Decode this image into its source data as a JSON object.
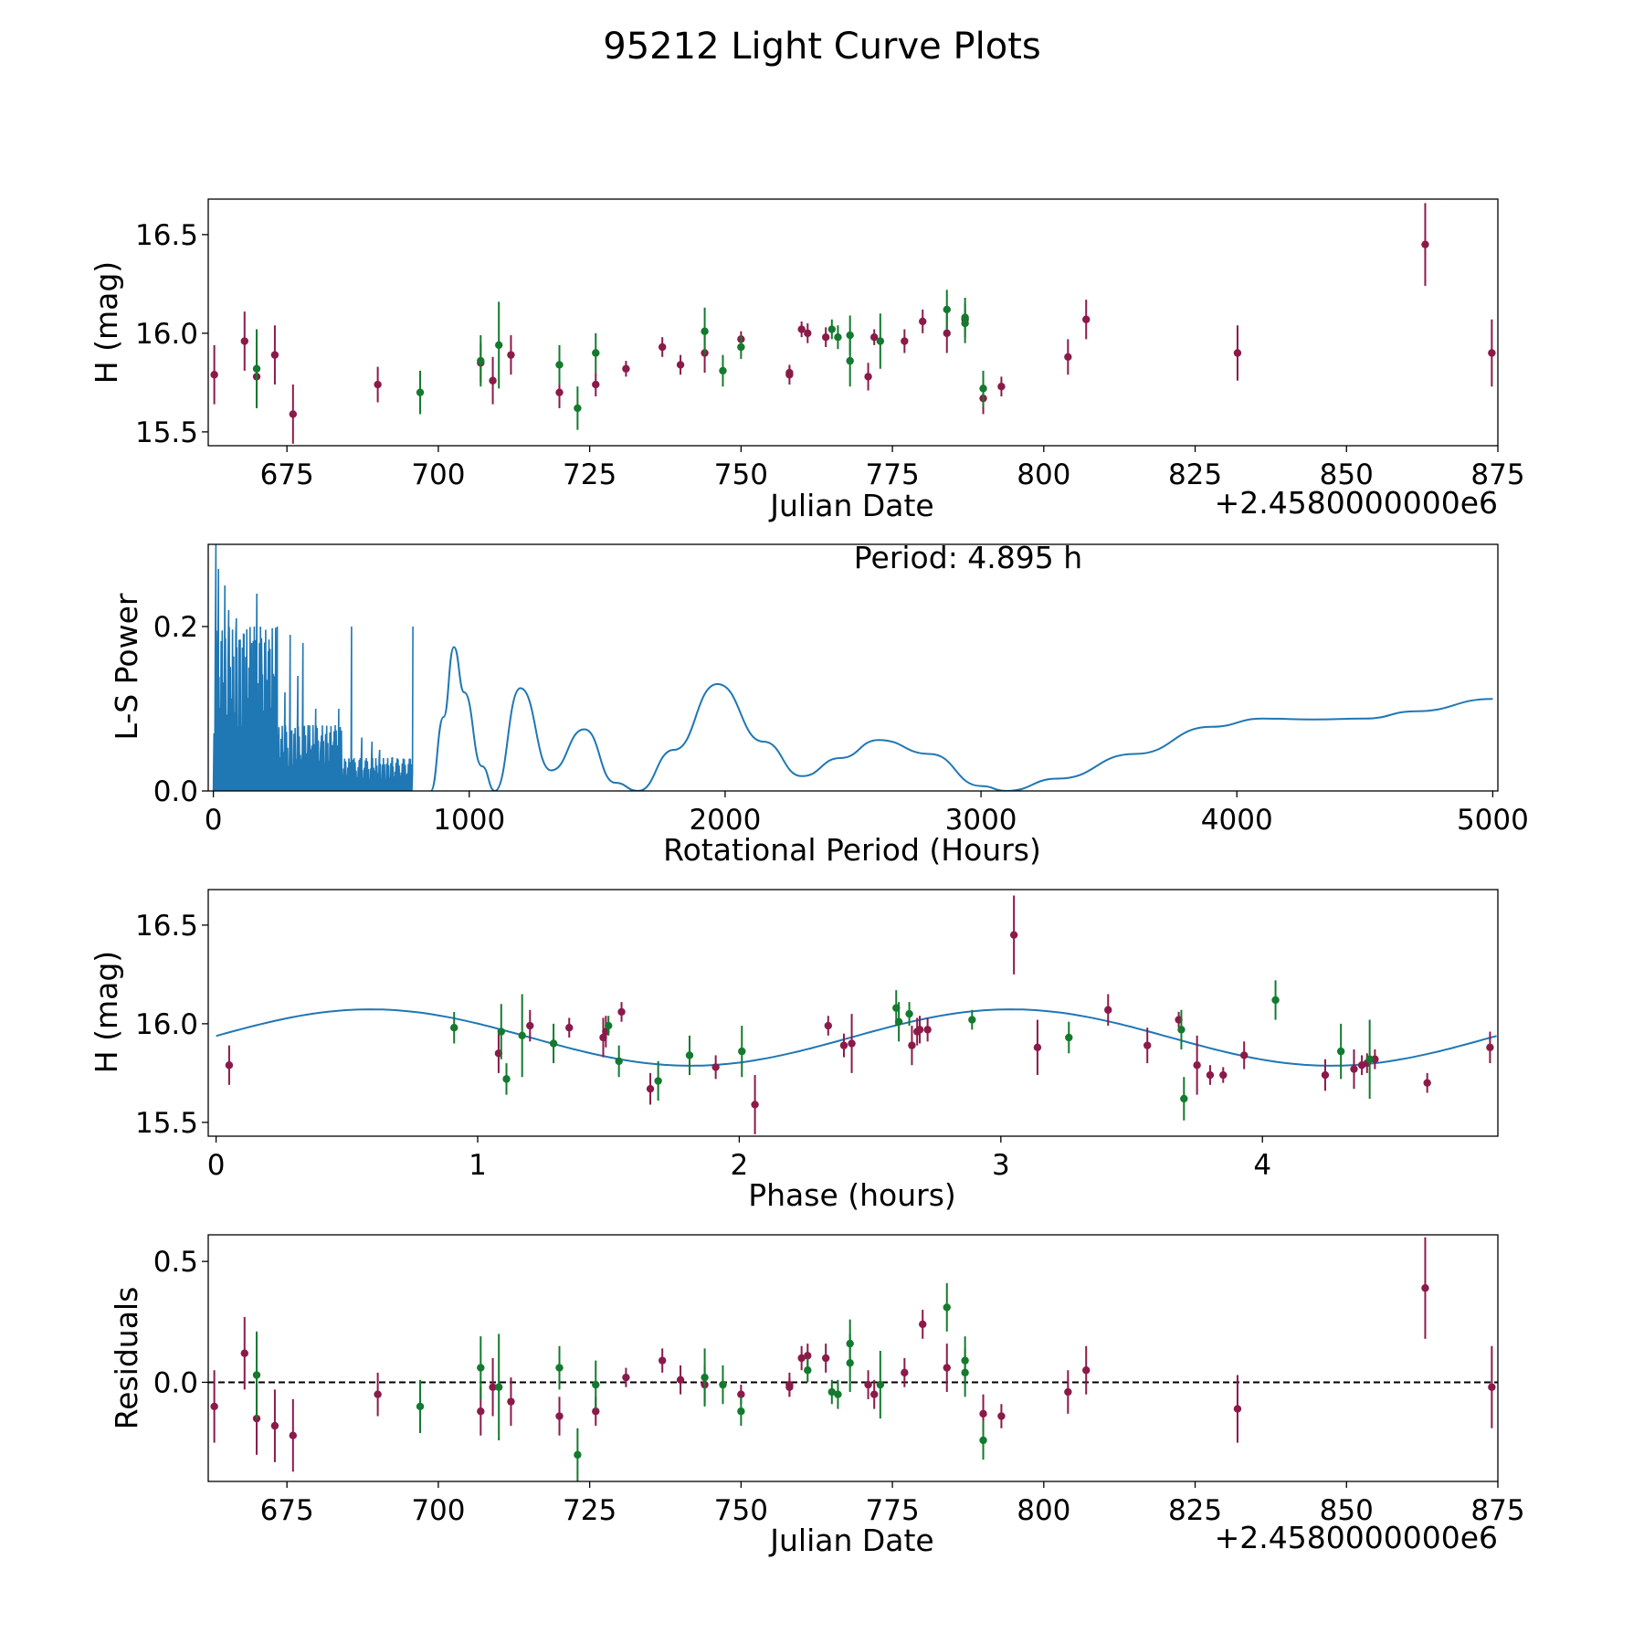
{
  "suptitle": "95212 Light Curve Plots",
  "colors": {
    "red": "#8B1A4A",
    "green": "#137A2E",
    "curve": "#1f77b4",
    "frame": "#000000"
  },
  "chart_data": [
    {
      "id": "lightcurve",
      "type": "scatter",
      "title": "",
      "xlabel": "Julian Date",
      "ylabel": "H (mag)",
      "offset_label": "+2.4580000000e6",
      "xlim": [
        662,
        875
      ],
      "ylim": [
        15.43,
        16.68
      ],
      "xticks": [
        675,
        700,
        725,
        750,
        775,
        800,
        825,
        850,
        875
      ],
      "yticks": [
        15.5,
        16.0,
        16.5
      ],
      "ytick_labels": [
        "15.5",
        "16.0",
        "16.5"
      ],
      "series": [
        {
          "name": "red",
          "points": [
            [
              663,
              15.79,
              0.15
            ],
            [
              668,
              15.96,
              0.15
            ],
            [
              670,
              15.78,
              0.15
            ],
            [
              673,
              15.89,
              0.15
            ],
            [
              676,
              15.59,
              0.15
            ],
            [
              690,
              15.74,
              0.09
            ],
            [
              707,
              15.85,
              0.1
            ],
            [
              709,
              15.76,
              0.12
            ],
            [
              712,
              15.89,
              0.1
            ],
            [
              720,
              15.7,
              0.08
            ],
            [
              726,
              15.74,
              0.06
            ],
            [
              731,
              15.82,
              0.04
            ],
            [
              737,
              15.93,
              0.05
            ],
            [
              740,
              15.84,
              0.05
            ],
            [
              744,
              15.9,
              0.1
            ],
            [
              750,
              15.97,
              0.04
            ],
            [
              758,
              15.79,
              0.05
            ],
            [
              758,
              15.8,
              0.03
            ],
            [
              760,
              16.02,
              0.04
            ],
            [
              761,
              16.0,
              0.05
            ],
            [
              764,
              15.98,
              0.05
            ],
            [
              771,
              15.78,
              0.07
            ],
            [
              772,
              15.98,
              0.04
            ],
            [
              777,
              15.96,
              0.06
            ],
            [
              780,
              16.06,
              0.06
            ],
            [
              784,
              16.0,
              0.1
            ],
            [
              787,
              16.07,
              0.05
            ],
            [
              790,
              15.67,
              0.08
            ],
            [
              793,
              15.73,
              0.05
            ],
            [
              804,
              15.88,
              0.09
            ],
            [
              807,
              16.07,
              0.1
            ],
            [
              832,
              15.9,
              0.14
            ],
            [
              863,
              16.45,
              0.21
            ],
            [
              874,
              15.9,
              0.17
            ]
          ]
        },
        {
          "name": "green",
          "points": [
            [
              670,
              15.82,
              0.2
            ],
            [
              697,
              15.7,
              0.11
            ],
            [
              707,
              15.86,
              0.13
            ],
            [
              710,
              15.94,
              0.22
            ],
            [
              720,
              15.84,
              0.1
            ],
            [
              723,
              15.62,
              0.11
            ],
            [
              726,
              15.9,
              0.1
            ],
            [
              744,
              16.01,
              0.12
            ],
            [
              747,
              15.81,
              0.08
            ],
            [
              750,
              15.93,
              0.06
            ],
            [
              765,
              16.02,
              0.05
            ],
            [
              766,
              15.98,
              0.06
            ],
            [
              768,
              15.86,
              0.13
            ],
            [
              768,
              15.99,
              0.1
            ],
            [
              773,
              15.96,
              0.14
            ],
            [
              784,
              16.12,
              0.1
            ],
            [
              787,
              16.08,
              0.1
            ],
            [
              787,
              16.05,
              0.1
            ],
            [
              790,
              15.72,
              0.09
            ]
          ]
        }
      ]
    },
    {
      "id": "periodogram",
      "type": "line",
      "title": "",
      "xlabel": "Rotational Period (Hours)",
      "ylabel": "L-S Power",
      "annotation": "Period: 4.895 h",
      "xlim": [
        -20,
        5020
      ],
      "ylim": [
        0,
        0.3
      ],
      "xticks": [
        0,
        1000,
        2000,
        3000,
        4000,
        5000
      ],
      "yticks": [
        0.0,
        0.2
      ],
      "ytick_labels": [
        "0.0",
        "0.2"
      ],
      "x": [
        0,
        850,
        900,
        940,
        980,
        1050,
        1100,
        1200,
        1320,
        1450,
        1570,
        1660,
        1800,
        1970,
        2150,
        2300,
        2450,
        2600,
        2800,
        3000,
        3100,
        3300,
        3600,
        3900,
        4100,
        4300,
        4500,
        4700,
        5000
      ],
      "y": [
        0.08,
        0.0,
        0.09,
        0.175,
        0.12,
        0.03,
        0.0,
        0.125,
        0.025,
        0.075,
        0.01,
        0.0,
        0.05,
        0.13,
        0.06,
        0.018,
        0.04,
        0.062,
        0.045,
        0.006,
        0.0,
        0.015,
        0.045,
        0.078,
        0.088,
        0.087,
        0.088,
        0.097,
        0.112
      ],
      "peaks": [
        [
          10,
          0.3
        ],
        [
          20,
          0.27
        ],
        [
          45,
          0.25
        ],
        [
          60,
          0.22
        ],
        [
          90,
          0.21
        ],
        [
          120,
          0.19
        ],
        [
          150,
          0.18
        ],
        [
          170,
          0.24
        ],
        [
          190,
          0.14
        ],
        [
          215,
          0.17
        ],
        [
          250,
          0.2
        ],
        [
          280,
          0.12
        ],
        [
          300,
          0.19
        ],
        [
          330,
          0.14
        ],
        [
          350,
          0.18
        ],
        [
          370,
          0.08
        ],
        [
          400,
          0.1
        ],
        [
          420,
          0.06
        ],
        [
          470,
          0.06
        ],
        [
          490,
          0.1
        ],
        [
          540,
          0.2
        ],
        [
          580,
          0.065
        ],
        [
          620,
          0.06
        ],
        [
          650,
          0.05
        ],
        [
          700,
          0.04
        ],
        [
          780,
          0.2
        ]
      ]
    },
    {
      "id": "phased",
      "type": "scatter",
      "title": "",
      "xlabel": "Phase (hours)",
      "ylabel": "H (mag)",
      "xlim": [
        -0.03,
        4.9
      ],
      "ylim": [
        15.43,
        16.68
      ],
      "xticks": [
        0,
        1,
        2,
        3,
        4
      ],
      "yticks": [
        15.5,
        16.0,
        16.5
      ],
      "ytick_labels": [
        "15.5",
        "16.0",
        "16.5"
      ],
      "model": {
        "mean": 15.93,
        "amplitude": 0.143,
        "period": 2.4475,
        "peak_phase": 0.59
      },
      "series": [
        {
          "name": "red",
          "points": [
            [
              0.05,
              15.79,
              0.1
            ],
            [
              1.08,
              15.85,
              0.1
            ],
            [
              1.2,
              15.99,
              0.08
            ],
            [
              1.35,
              15.98,
              0.05
            ],
            [
              1.48,
              15.93,
              0.1
            ],
            [
              1.49,
              15.96,
              0.08
            ],
            [
              1.55,
              16.06,
              0.05
            ],
            [
              1.66,
              15.67,
              0.08
            ],
            [
              1.91,
              15.78,
              0.06
            ],
            [
              2.06,
              15.59,
              0.15
            ],
            [
              2.34,
              15.99,
              0.05
            ],
            [
              2.4,
              15.89,
              0.06
            ],
            [
              2.43,
              15.9,
              0.15
            ],
            [
              2.66,
              15.89,
              0.1
            ],
            [
              2.68,
              15.96,
              0.07
            ],
            [
              2.69,
              15.97,
              0.07
            ],
            [
              2.72,
              15.97,
              0.06
            ],
            [
              3.05,
              16.45,
              0.2
            ],
            [
              3.14,
              15.88,
              0.14
            ],
            [
              3.41,
              16.07,
              0.08
            ],
            [
              3.56,
              15.89,
              0.09
            ],
            [
              3.68,
              16.02,
              0.04
            ],
            [
              3.75,
              15.79,
              0.15
            ],
            [
              3.8,
              15.74,
              0.05
            ],
            [
              3.85,
              15.74,
              0.04
            ],
            [
              3.93,
              15.84,
              0.07
            ],
            [
              4.24,
              15.74,
              0.08
            ],
            [
              4.35,
              15.77,
              0.1
            ],
            [
              4.38,
              15.79,
              0.05
            ],
            [
              4.4,
              15.8,
              0.05
            ],
            [
              4.43,
              15.82,
              0.05
            ],
            [
              4.63,
              15.7,
              0.05
            ],
            [
              4.87,
              15.88,
              0.08
            ]
          ]
        },
        {
          "name": "green",
          "points": [
            [
              0.91,
              15.98,
              0.08
            ],
            [
              1.09,
              15.96,
              0.14
            ],
            [
              1.11,
              15.72,
              0.08
            ],
            [
              1.17,
              15.94,
              0.21
            ],
            [
              1.29,
              15.9,
              0.1
            ],
            [
              1.5,
              15.99,
              0.05
            ],
            [
              1.54,
              15.81,
              0.08
            ],
            [
              1.69,
              15.71,
              0.1
            ],
            [
              1.81,
              15.84,
              0.1
            ],
            [
              2.01,
              15.86,
              0.13
            ],
            [
              2.6,
              16.08,
              0.09
            ],
            [
              2.61,
              16.01,
              0.1
            ],
            [
              2.65,
              16.05,
              0.06
            ],
            [
              2.89,
              16.02,
              0.05
            ],
            [
              3.26,
              15.93,
              0.08
            ],
            [
              3.69,
              15.97,
              0.1
            ],
            [
              3.7,
              15.62,
              0.11
            ],
            [
              4.05,
              16.12,
              0.1
            ],
            [
              4.3,
              15.86,
              0.14
            ],
            [
              4.41,
              15.82,
              0.2
            ]
          ]
        }
      ]
    },
    {
      "id": "residuals",
      "type": "scatter",
      "title": "",
      "xlabel": "Julian Date",
      "ylabel": "Residuals",
      "offset_label": "+2.4580000000e6",
      "xlim": [
        662,
        875
      ],
      "ylim": [
        -0.41,
        0.61
      ],
      "xticks": [
        675,
        700,
        725,
        750,
        775,
        800,
        825,
        850,
        875
      ],
      "yticks": [
        0.0,
        0.5
      ],
      "ytick_labels": [
        "0.0",
        "0.5"
      ],
      "zero_line": 0.0,
      "series": [
        {
          "name": "red",
          "points": [
            [
              663,
              -0.1,
              0.15
            ],
            [
              668,
              0.12,
              0.15
            ],
            [
              670,
              -0.15,
              0.15
            ],
            [
              673,
              -0.18,
              0.15
            ],
            [
              676,
              -0.22,
              0.15
            ],
            [
              690,
              -0.05,
              0.09
            ],
            [
              707,
              -0.12,
              0.1
            ],
            [
              709,
              -0.02,
              0.12
            ],
            [
              712,
              -0.08,
              0.1
            ],
            [
              720,
              -0.14,
              0.08
            ],
            [
              726,
              -0.12,
              0.06
            ],
            [
              731,
              0.02,
              0.04
            ],
            [
              737,
              0.09,
              0.05
            ],
            [
              740,
              0.01,
              0.06
            ],
            [
              744,
              -0.01,
              0.08
            ],
            [
              750,
              -0.05,
              0.04
            ],
            [
              758,
              -0.01,
              0.05
            ],
            [
              758,
              -0.02,
              0.04
            ],
            [
              760,
              0.1,
              0.05
            ],
            [
              761,
              0.11,
              0.05
            ],
            [
              764,
              0.1,
              0.06
            ],
            [
              771,
              -0.01,
              0.06
            ],
            [
              772,
              -0.05,
              0.06
            ],
            [
              777,
              0.04,
              0.06
            ],
            [
              780,
              0.24,
              0.06
            ],
            [
              784,
              0.06,
              0.1
            ],
            [
              790,
              -0.13,
              0.08
            ],
            [
              793,
              -0.14,
              0.05
            ],
            [
              804,
              -0.04,
              0.09
            ],
            [
              807,
              0.05,
              0.1
            ],
            [
              832,
              -0.11,
              0.14
            ],
            [
              863,
              0.39,
              0.21
            ],
            [
              874,
              -0.02,
              0.17
            ]
          ]
        },
        {
          "name": "green",
          "points": [
            [
              670,
              0.03,
              0.18
            ],
            [
              697,
              -0.1,
              0.11
            ],
            [
              707,
              0.06,
              0.13
            ],
            [
              710,
              -0.02,
              0.22
            ],
            [
              720,
              0.06,
              0.09
            ],
            [
              723,
              -0.3,
              0.11
            ],
            [
              726,
              -0.01,
              0.1
            ],
            [
              744,
              0.02,
              0.12
            ],
            [
              747,
              -0.01,
              0.08
            ],
            [
              750,
              -0.12,
              0.06
            ],
            [
              761,
              0.05,
              0.05
            ],
            [
              765,
              -0.04,
              0.05
            ],
            [
              766,
              -0.05,
              0.06
            ],
            [
              768,
              0.08,
              0.12
            ],
            [
              768,
              0.16,
              0.1
            ],
            [
              773,
              -0.01,
              0.14
            ],
            [
              784,
              0.31,
              0.1
            ],
            [
              787,
              0.09,
              0.1
            ],
            [
              787,
              0.04,
              0.1
            ],
            [
              790,
              -0.24,
              0.08
            ]
          ]
        }
      ]
    }
  ]
}
